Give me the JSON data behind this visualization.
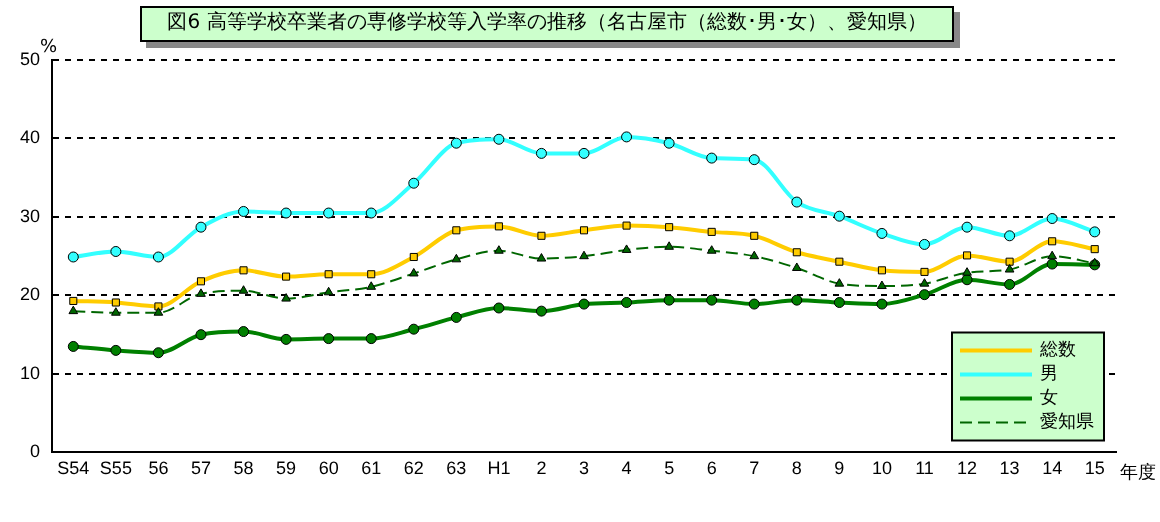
{
  "chart_data": {
    "type": "line",
    "title": "図6 高等学校卒業者の専修学校等入学率の推移（名古屋市（総数･男･女）、愛知県）",
    "xlabel": "年度",
    "ylabel": "%",
    "categories": [
      "S54",
      "S55",
      "56",
      "57",
      "58",
      "59",
      "60",
      "61",
      "62",
      "63",
      "H1",
      "2",
      "3",
      "4",
      "5",
      "6",
      "7",
      "8",
      "9",
      "10",
      "11",
      "12",
      "13",
      "14",
      "15"
    ],
    "series": [
      {
        "name": "総数",
        "color": "#ffcc00",
        "marker": "square",
        "values": [
          19.3,
          19.1,
          18.6,
          21.8,
          23.2,
          22.4,
          22.7,
          22.7,
          24.9,
          28.3,
          28.8,
          27.6,
          28.3,
          28.9,
          28.7,
          28.1,
          27.6,
          25.5,
          24.3,
          23.2,
          23.0,
          25.1,
          24.3,
          26.9,
          25.9
        ]
      },
      {
        "name": "男",
        "color": "#33ffff",
        "marker": "circle",
        "values": [
          24.9,
          25.6,
          24.9,
          28.7,
          30.7,
          30.5,
          30.5,
          30.5,
          34.3,
          39.4,
          39.9,
          38.1,
          38.1,
          40.2,
          39.4,
          37.5,
          37.3,
          31.9,
          30.1,
          27.9,
          26.5,
          28.7,
          27.6,
          29.8,
          28.1
        ]
      },
      {
        "name": "女",
        "color": "#008000",
        "marker": "circle",
        "values": [
          13.5,
          13.0,
          12.7,
          15.0,
          15.4,
          14.4,
          14.5,
          14.5,
          15.7,
          17.2,
          18.4,
          18.0,
          18.9,
          19.1,
          19.4,
          19.4,
          18.9,
          19.4,
          19.1,
          18.9,
          20.1,
          22.0,
          21.4,
          24.0,
          23.9
        ]
      },
      {
        "name": "愛知県",
        "color": "#006600",
        "marker": "triangle",
        "line_style": "dashed",
        "values": [
          18.0,
          17.8,
          17.8,
          20.2,
          20.6,
          19.6,
          20.4,
          21.1,
          22.8,
          24.6,
          25.7,
          24.7,
          25.0,
          25.8,
          26.2,
          25.7,
          25.0,
          23.5,
          21.5,
          21.2,
          21.5,
          22.9,
          23.3,
          25.0,
          24.1
        ]
      }
    ],
    "ylim": [
      0,
      50
    ],
    "yticks": [
      0,
      10,
      20,
      30,
      40,
      50
    ],
    "grid": "y",
    "legend": "bottom right"
  }
}
